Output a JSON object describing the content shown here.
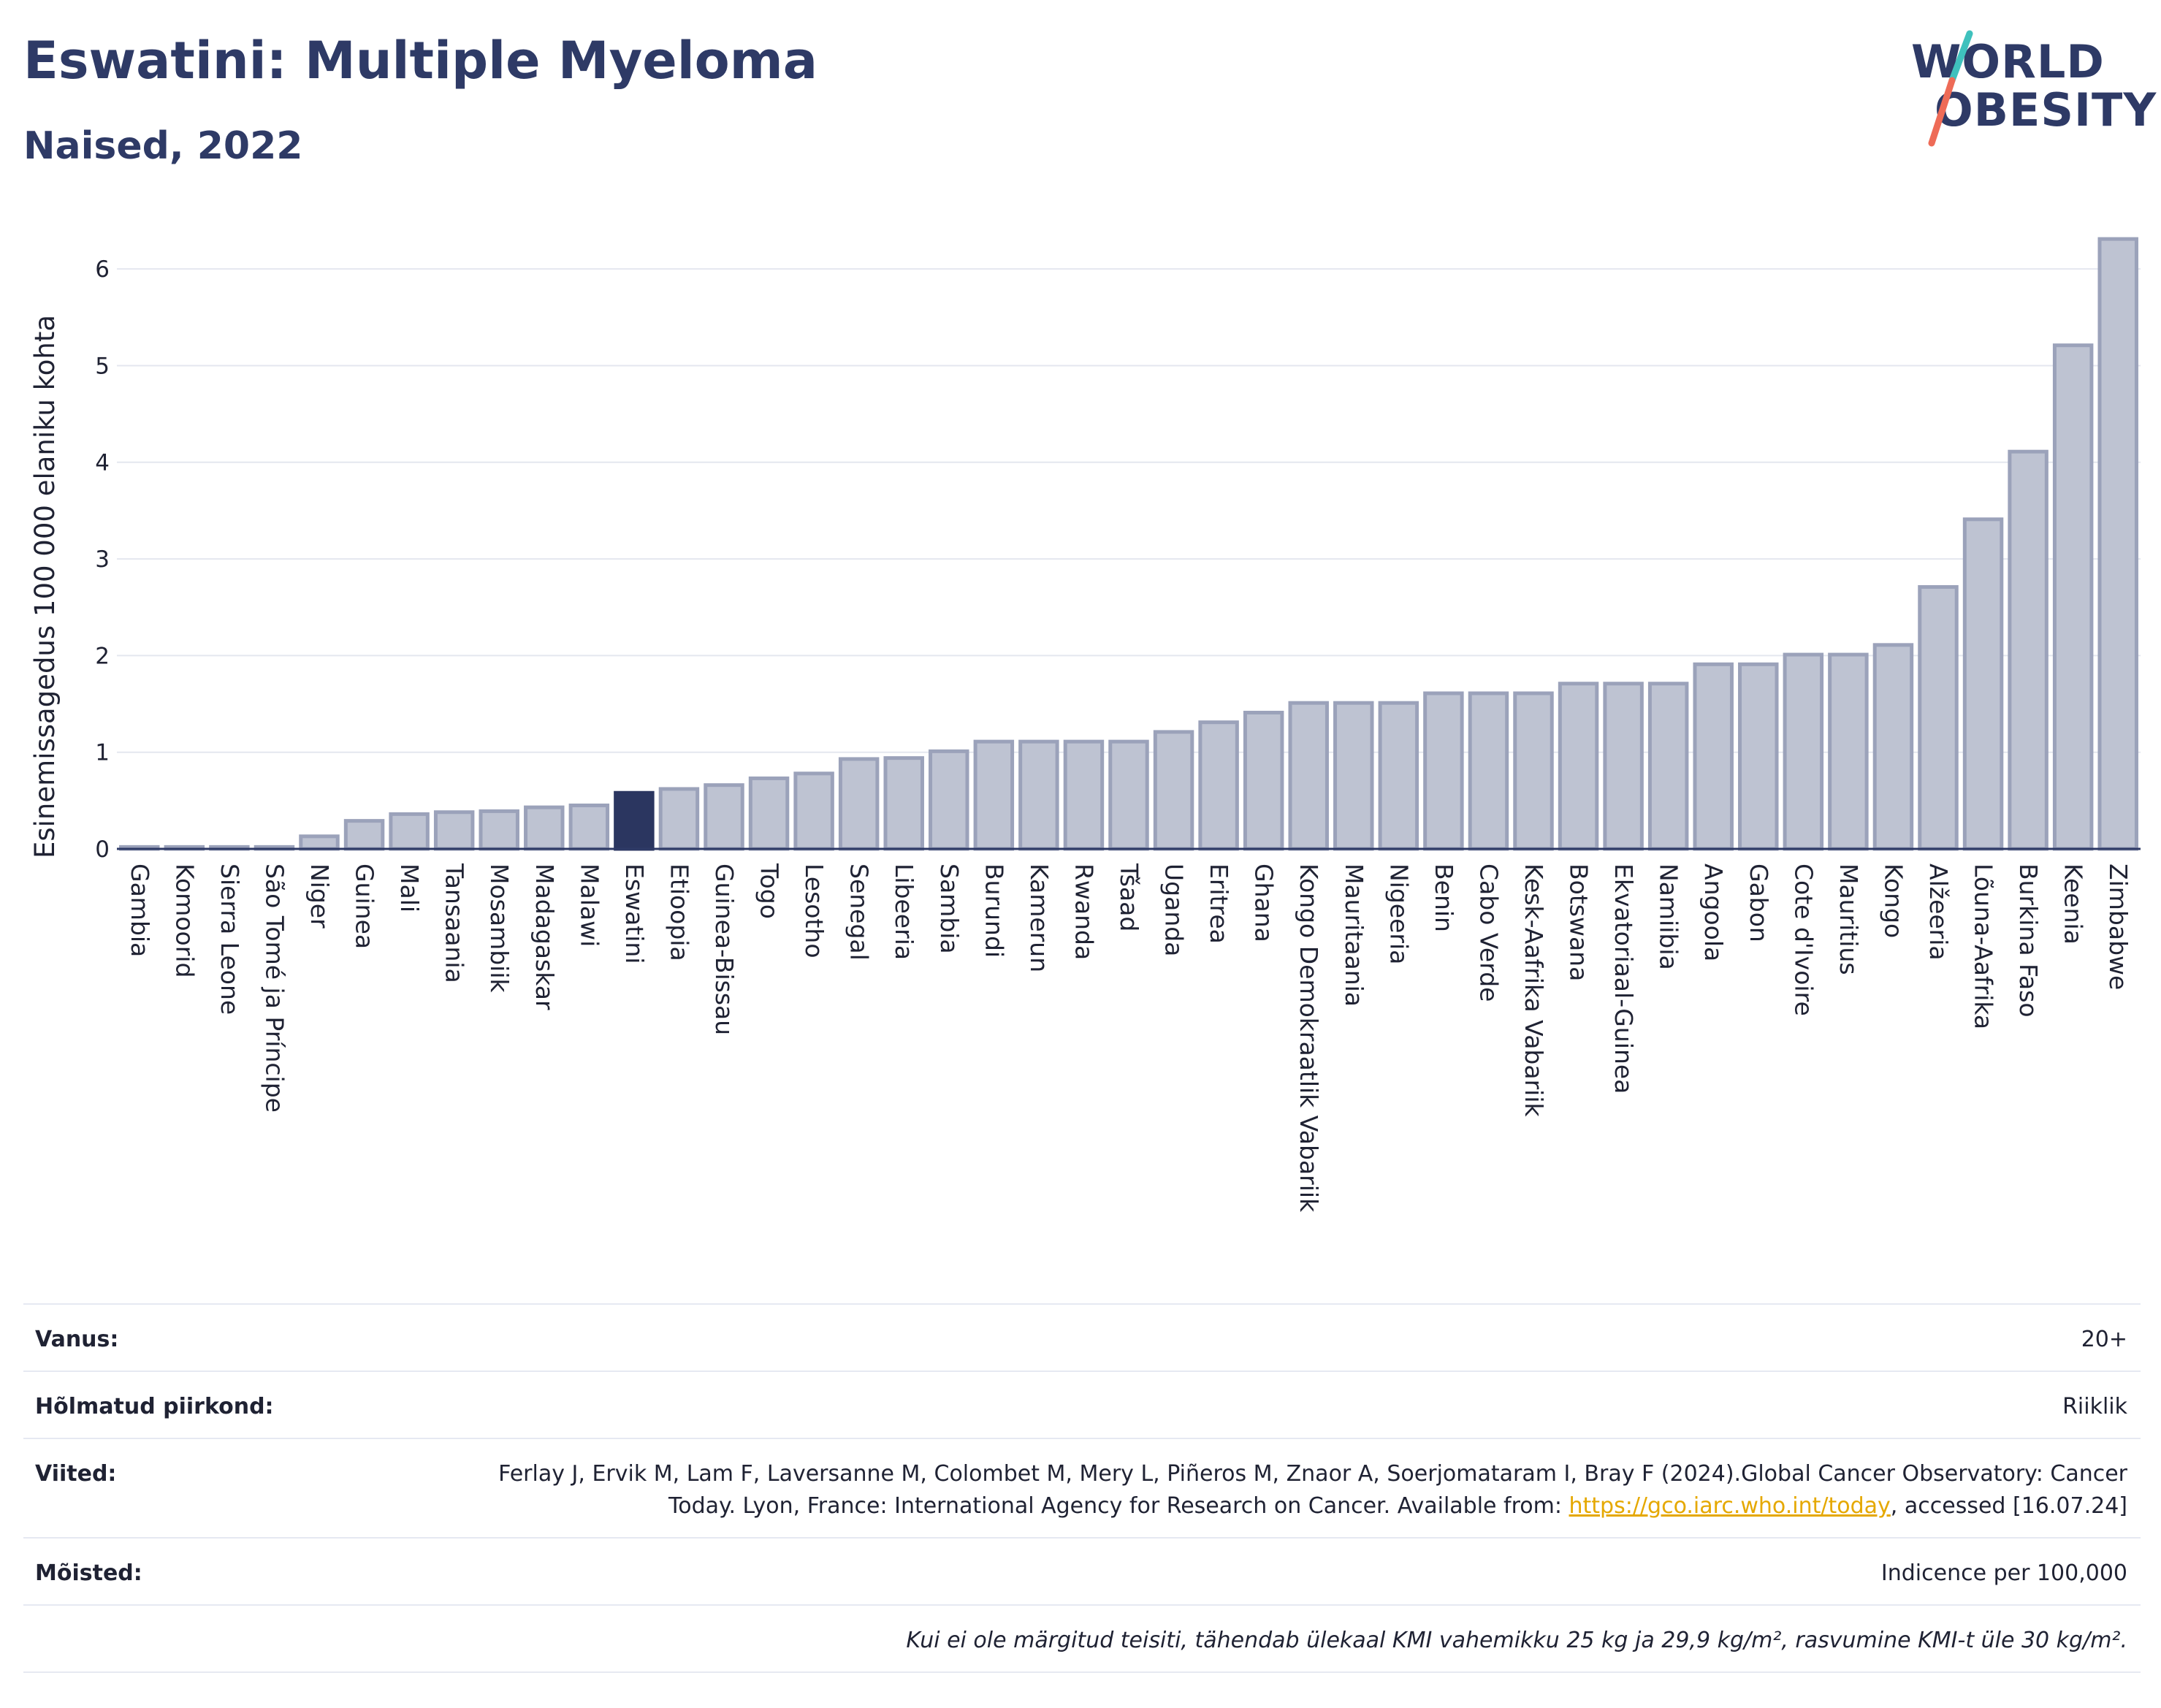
{
  "header": {
    "title": "Eswatini: Multiple Myeloma",
    "subtitle": "Naised, 2022"
  },
  "logo": {
    "line1": "WORLD",
    "line2": "OBESITY"
  },
  "colors": {
    "bar_fill": "#bec3d2",
    "bar_stroke": "#9ba2ba",
    "highlight_fill": "#2b3660",
    "axis": "#2e3a66",
    "grid": "#e4e7ef",
    "logo_teal": "#3fc1bd",
    "logo_coral": "#ee6b57"
  },
  "chart_data": {
    "type": "bar",
    "title": "Eswatini: Multiple Myeloma",
    "subtitle": "Naised, 2022",
    "ylabel": "Esinemissagedus 100 000 elaniku kohta",
    "xlabel": "",
    "ylim": [
      0,
      6.5
    ],
    "yticks": [
      0,
      1,
      2,
      3,
      4,
      5,
      6
    ],
    "grid": true,
    "highlight": "Eswatini",
    "categories": [
      "Gambia",
      "Komoorid",
      "Sierra Leone",
      "São Tomé ja Príncipe",
      "Niger",
      "Guinea",
      "Mali",
      "Tansaania",
      "Mosambiik",
      "Madagaskar",
      "Malawi",
      "Eswatini",
      "Etioopia",
      "Guinea-Bissau",
      "Togo",
      "Lesotho",
      "Senegal",
      "Libeeria",
      "Sambia",
      "Burundi",
      "Kamerun",
      "Rwanda",
      "Tšaad",
      "Uganda",
      "Eritrea",
      "Ghana",
      "Kongo Demokraatlik Vabariik",
      "Mauritaania",
      "Nigeeria",
      "Benin",
      "Cabo Verde",
      "Kesk-Aafrika Vabariik",
      "Botswana",
      "Ekvatoriaal-Guinea",
      "Namiibia",
      "Angoola",
      "Gabon",
      "Cote d'Ivoire",
      "Mauritius",
      "Kongo",
      "Alžeeria",
      "Lõuna-Aafrika",
      "Burkina Faso",
      "Keenia",
      "Zimbabwe"
    ],
    "values": [
      0.02,
      0.02,
      0.02,
      0.02,
      0.13,
      0.29,
      0.36,
      0.38,
      0.39,
      0.43,
      0.45,
      0.58,
      0.62,
      0.66,
      0.73,
      0.78,
      0.93,
      0.94,
      1.01,
      1.11,
      1.11,
      1.11,
      1.11,
      1.21,
      1.31,
      1.41,
      1.51,
      1.51,
      1.51,
      1.61,
      1.61,
      1.61,
      1.71,
      1.71,
      1.71,
      1.91,
      1.91,
      2.01,
      2.01,
      2.11,
      2.71,
      3.41,
      4.11,
      5.21,
      6.31
    ]
  },
  "info": {
    "age_label": "Vanus:",
    "age_value": "20+",
    "region_label": "Hõlmatud piirkond:",
    "region_value": "Riiklik",
    "refs_label": "Viited:",
    "refs_text_1": "Ferlay J, Ervik M, Lam F, Laversanne M, Colombet M, Mery L, Piñeros M, Znaor A, Soerjomataram I, Bray F (2024).Global Cancer Observatory: Cancer Today. Lyon, France: International Agency for Research on Cancer. Available from: ",
    "refs_link": "https://gco.iarc.who.int/today",
    "refs_text_2": ", accessed [16.07.24]",
    "defs_label": "Mõisted:",
    "defs_value": "Indicence per 100,000",
    "note": "Kui ei ole märgitud teisiti, tähendab ülekaal KMI vahemikku 25 kg ja 29,9 kg/m², rasvumine KMI-t üle 30 kg/m²."
  }
}
